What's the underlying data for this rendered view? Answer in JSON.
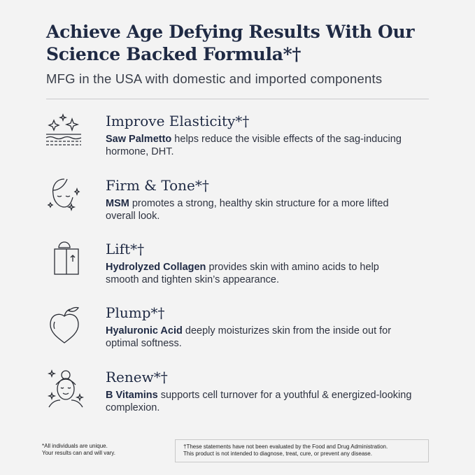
{
  "header": {
    "title_line1": "Achieve Age Defying Results With Our",
    "title_line2": "Science Backed Formula*†",
    "subtitle": "MFG in the USA with domestic and imported components"
  },
  "items": [
    {
      "icon": "sparkle-skin-layers-icon",
      "heading": "Improve Elasticity*†",
      "ingredient": "Saw Palmetto",
      "text": " helps reduce the visible effects of the sag-inducing hormone, DHT."
    },
    {
      "icon": "face-sparkle-icon",
      "heading": "Firm & Tone*†",
      "ingredient": "MSM",
      "text": " promotes a strong, healthy skin structure for a more lifted overall look."
    },
    {
      "icon": "elevator-lift-icon",
      "heading": "Lift*†",
      "ingredient": "Hydrolyzed Collagen",
      "text": " provides skin with amino acids to help smooth and tighten skin’s appearance."
    },
    {
      "icon": "peach-icon",
      "heading": "Plump*†",
      "ingredient": "Hyaluronic Acid",
      "text": " deeply moisturizes skin from the inside out for optimal softness."
    },
    {
      "icon": "face-towel-spa-icon",
      "heading": "Renew*†",
      "ingredient": "B Vitamins",
      "text": " supports cell turnover for a youthful & energized-looking complexion."
    }
  ],
  "footer": {
    "note_line1": "*All individuals are unique.",
    "note_line2": "Your results can and will vary.",
    "disclaimer_line1": "†These statements have not been evaluated by the Food and Drug Administration.",
    "disclaimer_line2": "This product is not intended to diagnose, treat, cure, or prevent any disease."
  }
}
